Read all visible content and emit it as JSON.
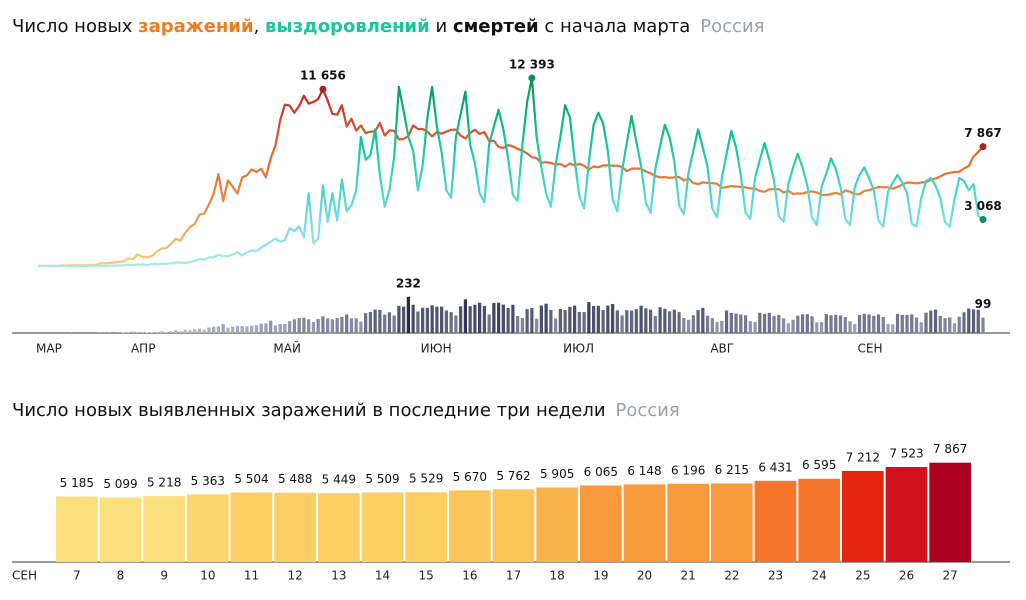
{
  "chart_data": [
    {
      "type": "line",
      "title_parts": [
        {
          "text": "Число новых "
        },
        {
          "text": "заражений",
          "color": "#f07c1e",
          "bold": true
        },
        {
          "text": ", "
        },
        {
          "text": "выздоровлений",
          "color": "#19c79a",
          "bold": true
        },
        {
          "text": " и "
        },
        {
          "text": "смертей",
          "color": "#111111",
          "bold": true
        },
        {
          "text": " с начала марта"
        }
      ],
      "region": "Россия",
      "xlim": [
        0,
        199
      ],
      "xticks": [
        {
          "value": 0,
          "label": "МАР"
        },
        {
          "value": 20,
          "label": "АПР"
        },
        {
          "value": 50,
          "label": "МАЙ"
        },
        {
          "value": 81,
          "label": "ИЮН"
        },
        {
          "value": 111,
          "label": "ИЮЛ"
        },
        {
          "value": 142,
          "label": "АВГ"
        },
        {
          "value": 173,
          "label": "СЕН"
        }
      ],
      "ylim": [
        0,
        12000
      ],
      "y2lim": [
        0,
        250
      ],
      "series": [
        {
          "type": "line",
          "colors": [
            "#f7cf7a",
            "#ee8a3a",
            "#e0602e",
            "#b8232a"
          ],
          "values": [
            6,
            6,
            11,
            14,
            4,
            30,
            33,
            52,
            54,
            53,
            57,
            71,
            57,
            163,
            182,
            196,
            228,
            270,
            302,
            500,
            440,
            771,
            601,
            582,
            658,
            954,
            1154,
            1175,
            1459,
            1786,
            1667,
            2186,
            2558,
            2774,
            3388,
            3448,
            4070,
            4785,
            6060,
            4268,
            5642,
            5236,
            4774,
            5849,
            5966,
            6361,
            6198,
            6411,
            5841,
            7099,
            7933,
            9623,
            10633,
            10581,
            10102,
            10559,
            11231,
            10699,
            10817,
            11012,
            11656,
            10899,
            10028,
            9974,
            10598,
            9200,
            9709,
            8926,
            9263,
            8764,
            8849,
            8894,
            9434,
            8599,
            8946,
            8915,
            8338,
            8371,
            8572,
            9268,
            9035,
            9035,
            8863,
            8536,
            8831,
            8726,
            8855,
            8984,
            8985,
            8595,
            8404,
            8779,
            8987,
            8706,
            8835,
            8246,
            8248,
            7843,
            7790,
            7972,
            7889,
            7728,
            7600,
            7425,
            7176,
            7113,
            6800,
            6852,
            6791,
            6693,
            6719,
            6556,
            6760,
            6632,
            6736,
            6611,
            6368,
            6562,
            6509,
            6635,
            6632,
            6611,
            6615,
            6537,
            6248,
            6422,
            6428,
            6406,
            6234,
            6109,
            5940,
            5842,
            5862,
            5811,
            5848,
            5871,
            5635,
            5765,
            5475,
            5395,
            5509,
            5482,
            5462,
            5427,
            5159,
            5204,
            5267,
            5241,
            5212,
            5189,
            5118,
            5102,
            4945,
            4892,
            5057,
            5065,
            5061,
            4839,
            4969,
            4748,
            4790,
            4767,
            4870,
            4921,
            4852,
            4696,
            4676,
            4744,
            4829,
            4711,
            4979,
            4897,
            4729,
            4729,
            4952,
            4995,
            5110,
            5205,
            5195,
            5185,
            5099,
            5218,
            5363,
            5504,
            5488,
            5449,
            5509,
            5529,
            5670,
            5762,
            5905,
            6065,
            6148,
            6196,
            6215,
            6431,
            6595,
            7212,
            7523,
            7867
          ],
          "value_labels": {
            "60": "11 656",
            "199": "7 867"
          },
          "dot_color": "#a3242a"
        },
        {
          "type": "line",
          "colors": [
            "#a8e9ee",
            "#5fd8dc",
            "#14c79a",
            "#0a9a5c"
          ],
          "values": [
            0,
            0,
            2,
            2,
            0,
            3,
            5,
            5,
            5,
            10,
            7,
            9,
            22,
            5,
            5,
            22,
            23,
            30,
            45,
            66,
            58,
            100,
            113,
            50,
            137,
            131,
            144,
            147,
            178,
            222,
            230,
            190,
            266,
            335,
            454,
            420,
            578,
            563,
            729,
            646,
            650,
            750,
            906,
            700,
            900,
            1000,
            1000,
            1200,
            1400,
            1600,
            1800,
            1600,
            1700,
            2500,
            2300,
            2600,
            1900,
            4800,
            1500,
            1800,
            5300,
            2900,
            4800,
            3000,
            5700,
            3600,
            4000,
            5000,
            8500,
            7000,
            7300,
            9000,
            6000,
            3900,
            5000,
            7200,
            11800,
            10200,
            8500,
            7600,
            5000,
            6600,
            9800,
            11800,
            9200,
            7500,
            5000,
            4500,
            8500,
            10000,
            11500,
            8000,
            6800,
            4800,
            4200,
            8000,
            9200,
            10300,
            9000,
            7100,
            4700,
            4300,
            8000,
            10800,
            12393,
            8500,
            6500,
            4800,
            3900,
            6700,
            8500,
            10600,
            9800,
            7000,
            4600,
            3800,
            6900,
            9300,
            10100,
            9400,
            7600,
            4400,
            3600,
            6300,
            8100,
            9900,
            8200,
            6600,
            4200,
            3500,
            6400,
            7900,
            9300,
            8500,
            6900,
            4000,
            3400,
            6200,
            7600,
            9000,
            7800,
            6500,
            3800,
            3200,
            5800,
            7400,
            8900,
            7800,
            6000,
            3500,
            3100,
            5800,
            7000,
            8100,
            7000,
            5600,
            3300,
            2900,
            5400,
            6500,
            7400,
            6500,
            5300,
            3200,
            2700,
            5200,
            6100,
            7100,
            6400,
            5200,
            3100,
            2700,
            5200,
            6000,
            6500,
            5800,
            5000,
            3000,
            2600,
            4900,
            5500,
            6000,
            5500,
            4800,
            2800,
            2600,
            4500,
            5600,
            5800,
            5300,
            4500,
            2900,
            2600,
            4400,
            5800,
            5600,
            5000,
            5400,
            3300,
            3068
          ],
          "value_labels": {
            "104": "12 393",
            "199": "3 068"
          },
          "dot_color": "#0a8f55"
        },
        {
          "type": "bar",
          "axis": "y2",
          "colors": [
            "#c3c6d8",
            "#1b1e3c"
          ],
          "values": [
            0,
            0,
            0,
            0,
            0,
            0,
            0,
            1,
            0,
            0,
            0,
            0,
            0,
            1,
            1,
            1,
            0,
            1,
            3,
            2,
            9,
            2,
            7,
            4,
            4,
            2,
            11,
            5,
            13,
            18,
            12,
            22,
            20,
            24,
            28,
            22,
            35,
            41,
            43,
            57,
            34,
            40,
            46,
            44,
            42,
            47,
            50,
            60,
            61,
            79,
            48,
            57,
            58,
            76,
            88,
            96,
            98,
            88,
            70,
            90,
            107,
            94,
            88,
            96,
            103,
            119,
            94,
            94,
            73,
            127,
            135,
            150,
            148,
            118,
            133,
            112,
            174,
            169,
            232,
            181,
            138,
            162,
            161,
            178,
            169,
            169,
            144,
            134,
            112,
            171,
            216,
            172,
            181,
            194,
            174,
            119,
            193,
            194,
            182,
            161,
            181,
            109,
            96,
            153,
            161,
            92,
            176,
            188,
            147,
            93,
            154,
            147,
            168,
            176,
            135,
            134,
            198,
            173,
            174,
            147,
            176,
            186,
            145,
            113,
            146,
            144,
            153,
            175,
            158,
            150,
            109,
            165,
            155,
            139,
            150,
            134,
            97,
            85,
            114,
            147,
            161,
            111,
            95,
            70,
            78,
            144,
            129,
            124,
            119,
            114,
            76,
            70,
            130,
            123,
            129,
            109,
            116,
            94,
            63,
            85,
            111,
            120,
            121,
            107,
            68,
            70,
            122,
            114,
            117,
            113,
            102,
            75,
            57,
            115,
            123,
            119,
            110,
            119,
            102,
            58,
            56,
            122,
            116,
            116,
            119,
            99,
            69,
            130,
            144,
            150,
            110,
            96,
            100,
            63,
            103,
            133,
            157,
            152,
            149,
            99
          ],
          "value_labels": {
            "78": "232",
            "199": "99"
          }
        }
      ]
    },
    {
      "type": "bar",
      "title": "Число новых выявленных заражений в последние три недели",
      "region": "Россия",
      "x_label": "СЕН",
      "ylim": [
        0,
        8000
      ],
      "categories": [
        "7",
        "8",
        "9",
        "10",
        "11",
        "12",
        "13",
        "14",
        "15",
        "16",
        "17",
        "18",
        "19",
        "20",
        "21",
        "22",
        "23",
        "24",
        "25",
        "26",
        "27"
      ],
      "values": [
        5185,
        5099,
        5218,
        5363,
        5504,
        5488,
        5449,
        5509,
        5529,
        5670,
        5762,
        5905,
        6065,
        6148,
        6196,
        6215,
        6431,
        6595,
        7212,
        7523,
        7867
      ],
      "value_labels": [
        "5 185",
        "5 099",
        "5 218",
        "5 363",
        "5 504",
        "5 488",
        "5 449",
        "5 509",
        "5 529",
        "5 670",
        "5 762",
        "5 905",
        "6 065",
        "6 148",
        "6 196",
        "6 215",
        "6 431",
        "6 595",
        "7 212",
        "7 523",
        "7 867"
      ],
      "colors": [
        "#fbdf7c",
        "#fbdf7c",
        "#fbdf7c",
        "#fad56b",
        "#fbcf63",
        "#fbcf63",
        "#fbcf63",
        "#fbcf63",
        "#fbcf63",
        "#fbc55a",
        "#fbc55a",
        "#f9b24c",
        "#f99a3c",
        "#f99a3c",
        "#f99a3c",
        "#f99a3c",
        "#f6762d",
        "#f6762d",
        "#e6250f",
        "#d1121c",
        "#ae0020"
      ],
      "label_colors": [
        "#222222",
        "#222222",
        "#222222",
        "#222222",
        "#222222",
        "#e8431b",
        "#e8431b",
        "#222222",
        "#222222",
        "#222222",
        "#222222",
        "#222222",
        "#e8431b",
        "#e8431b",
        "#222222",
        "#222222",
        "#222222",
        "#222222",
        "#222222",
        "#e8431b",
        "#e8431b"
      ]
    }
  ]
}
